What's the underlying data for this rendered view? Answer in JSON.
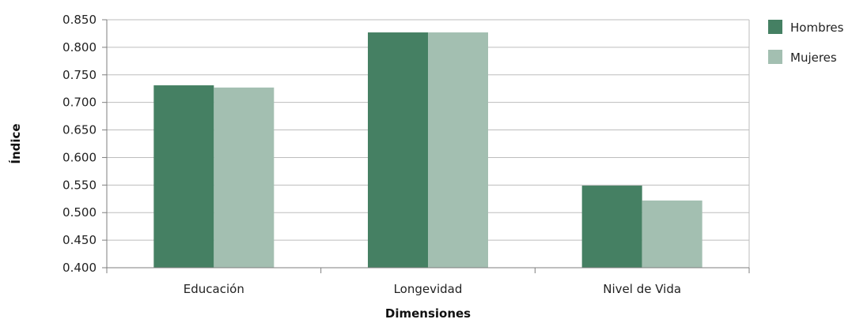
{
  "chart_data": {
    "type": "bar",
    "title": "",
    "xlabel": "Dimensiones",
    "ylabel": "Índice",
    "categories": [
      "Educación",
      "Longevidad",
      "Nivel de Vida"
    ],
    "series": [
      {
        "name": "Hombres",
        "color": "#458063",
        "values": [
          0.731,
          0.827,
          0.549
        ]
      },
      {
        "name": "Mujeres",
        "color": "#a3bfb1",
        "values": [
          0.727,
          0.827,
          0.522
        ]
      }
    ],
    "ylim": [
      0.4,
      0.85
    ],
    "yticks": [
      "0.850",
      "0.800",
      "0.750",
      "0.700",
      "0.650",
      "0.600",
      "0.550",
      "0.500",
      "0.450",
      "0.400"
    ],
    "grid": true,
    "legend_position": "right"
  }
}
